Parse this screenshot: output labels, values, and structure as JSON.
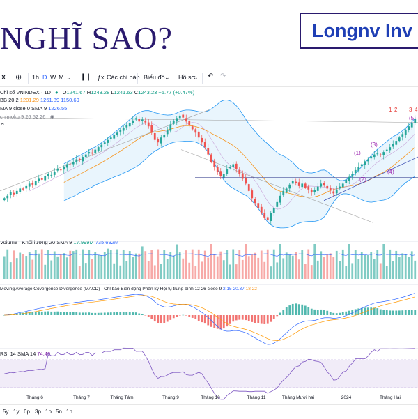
{
  "header": {
    "title": "NGHĨ SAO?",
    "brand": "Longnv Inv"
  },
  "toolbar": {
    "symbol_partial": "X",
    "timeframes": [
      "1h",
      "D",
      "W",
      "M"
    ],
    "active_timeframe": "D",
    "indicators_label": "Các chỉ báo",
    "chart_type_label": "Biểu đồ",
    "template_label": "Hồ sơ"
  },
  "legend": {
    "symbol": "Chỉ số VNINDEX · 1D",
    "ohlc": {
      "o_label": "O",
      "o": "1241.67",
      "h_label": "H",
      "h": "1243.28",
      "l_label": "L",
      "l": "1241.63",
      "c_label": "C",
      "c": "1243.23",
      "change": "+5.77 (+0.47%)"
    },
    "bb": {
      "name": "BB 20 2",
      "basis": "1201.29",
      "upper": "1251.89",
      "lower": "1150.69"
    },
    "sma": {
      "name": "MA 9 close 0 SMA 9",
      "value": "1226.55"
    },
    "ichimoku": {
      "name": "chimoku 9 26 52 26"
    },
    "volume": {
      "name": "Volume · Khối lượng 20 SMA 9",
      "v1": "17.999M",
      "v2": "735.692M"
    },
    "macd": {
      "name": "Moving Average Covergence Divergence (MACD) · Chỉ báo Biến động Phân kỳ Hội tụ trung bình 12 26 close 9",
      "v1": "2.15",
      "v2": "20.37",
      "v3": "18.22"
    },
    "rsi": {
      "name": "RSI 14 SMA 14",
      "value": "74.40"
    }
  },
  "annotations": {
    "wave_labels": [
      "(1)",
      "(2)",
      "(3)",
      "(4)",
      "(5)"
    ],
    "top_labels": [
      "1",
      "2",
      "3",
      "4"
    ]
  },
  "timeframe_bar": [
    "5y",
    "1y",
    "6p",
    "3p",
    "1p",
    "5n",
    "1n"
  ],
  "colors": {
    "up": "#26a69a",
    "down": "#ef5350",
    "bb": "#2196f3",
    "bb_fill": "#e3f2fd",
    "sma": "#f7931a",
    "ichimoku": "#9e9e9e",
    "rsi": "#7e57c2",
    "signal": "#ff9800",
    "macd": "#2962ff"
  },
  "chart_data": {
    "type": "candlestick",
    "title": "Chỉ số VNINDEX · 1D",
    "x_ticks": [
      "Tháng 6",
      "Tháng 7",
      "Tháng Tám",
      "Tháng 9",
      "Tháng 10",
      "Tháng 11",
      "Tháng Mười hai",
      "2024",
      "Tháng Hai"
    ],
    "close": [
      1080,
      1085,
      1092,
      1088,
      1095,
      1100,
      1098,
      1105,
      1110,
      1108,
      1115,
      1120,
      1118,
      1125,
      1130,
      1128,
      1135,
      1140,
      1138,
      1145,
      1150,
      1148,
      1155,
      1160,
      1158,
      1165,
      1170,
      1175,
      1172,
      1180,
      1185,
      1190,
      1195,
      1200,
      1205,
      1210,
      1215,
      1220,
      1225,
      1230,
      1235,
      1240,
      1245,
      1238,
      1242,
      1236,
      1228,
      1215,
      1200,
      1195,
      1205,
      1210,
      1220,
      1232,
      1240,
      1245,
      1250,
      1246,
      1238,
      1230,
      1222,
      1215,
      1205,
      1195,
      1185,
      1170,
      1155,
      1145,
      1135,
      1125,
      1130,
      1140,
      1145,
      1150,
      1140,
      1130,
      1120,
      1110,
      1095,
      1080,
      1070,
      1060,
      1050,
      1040,
      1035,
      1050,
      1060,
      1072,
      1085,
      1095,
      1100,
      1108,
      1115,
      1112,
      1105,
      1110,
      1102,
      1098,
      1092,
      1097,
      1104,
      1110,
      1106,
      1100,
      1096,
      1090,
      1098,
      1104,
      1110,
      1118,
      1124,
      1130,
      1138,
      1145,
      1150,
      1156,
      1160,
      1166,
      1170,
      1172,
      1168,
      1175,
      1180,
      1185,
      1192,
      1198,
      1205,
      1212,
      1220,
      1228,
      1235,
      1243
    ],
    "volume_ma_label": "Volume SMA 9",
    "rsi_value": 74.4
  }
}
